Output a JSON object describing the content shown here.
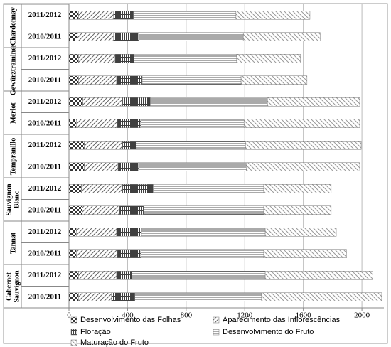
{
  "chart_data": {
    "type": "stacked-bar-horizontal",
    "groups": [
      "Chardonnay",
      "Gewürztraminer",
      "Merlot",
      "Tempranillo",
      "Sauvignon Blanc",
      "Tannat",
      "Cabernet Sauvignon"
    ],
    "categories": [
      "2011/2012",
      "2010/2011",
      "2011/2012",
      "2010/2011",
      "2011/2012",
      "2010/2011",
      "2011/2012",
      "2010/2011",
      "2011/2012",
      "2010/2011",
      "2011/2012",
      "2010/2011",
      "2011/2012",
      "2010/2011"
    ],
    "series": [
      {
        "name": "Desenvolvimento das Folhas",
        "color": "#333333",
        "values": [
          65,
          55,
          65,
          65,
          95,
          50,
          105,
          105,
          85,
          90,
          50,
          50,
          65,
          65
        ]
      },
      {
        "name": "Aparecimento das Inflorescências",
        "color": "#666666",
        "values": [
          240,
          250,
          250,
          260,
          270,
          280,
          260,
          230,
          280,
          255,
          275,
          280,
          260,
          225
        ]
      },
      {
        "name": "Floração",
        "color": "#404040",
        "values": [
          135,
          170,
          130,
          175,
          190,
          160,
          95,
          140,
          210,
          165,
          170,
          160,
          105,
          160
        ]
      },
      {
        "name": "Desenvolvimento do Fruto",
        "color": "#555555",
        "values": [
          700,
          715,
          700,
          675,
          800,
          705,
          745,
          735,
          755,
          820,
          845,
          840,
          910,
          865
        ]
      },
      {
        "name": "Maturação do Fruto",
        "color": "#999999",
        "values": [
          505,
          525,
          435,
          450,
          630,
          790,
          790,
          775,
          460,
          460,
          485,
          565,
          735,
          820
        ]
      }
    ],
    "xlim": [
      0,
      2150
    ],
    "xticks": [
      0,
      400,
      800,
      1200,
      1600,
      2000
    ],
    "grid": true
  }
}
